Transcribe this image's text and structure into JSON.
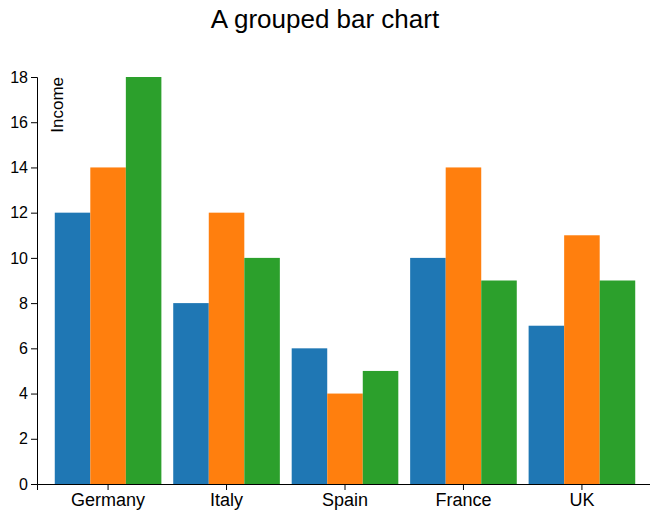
{
  "chart_data": {
    "type": "bar",
    "title": "A grouped bar chart",
    "y_label": "Income",
    "categories": [
      "Germany",
      "Italy",
      "Spain",
      "France",
      "UK"
    ],
    "series": [
      {
        "color": "#1f77b4",
        "values": [
          12,
          8,
          6,
          10,
          7
        ]
      },
      {
        "color": "#ff7f0e",
        "values": [
          14,
          12,
          4,
          14,
          11
        ]
      },
      {
        "color": "#2ca02c",
        "values": [
          18,
          10,
          5,
          9,
          9
        ]
      }
    ],
    "ylim": [
      0,
      18
    ],
    "yticks": [
      0,
      2,
      4,
      6,
      8,
      10,
      12,
      14,
      16,
      18
    ],
    "grid": false
  }
}
